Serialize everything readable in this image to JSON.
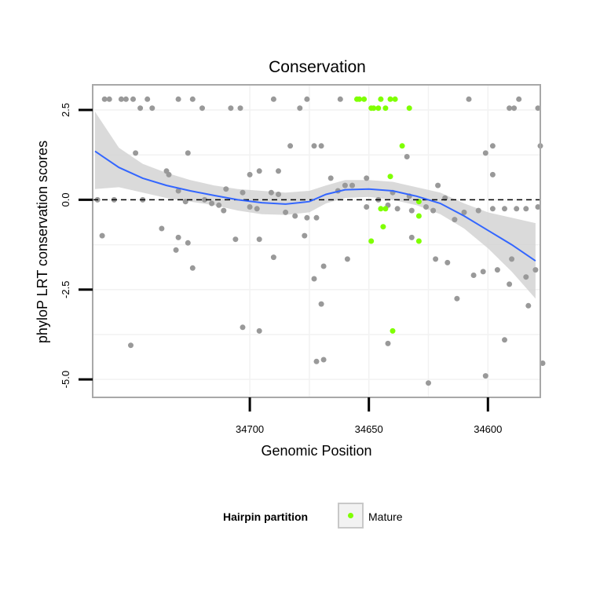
{
  "chart_data": {
    "type": "scatter",
    "title": "Conservation",
    "xlabel": "Genomic Position",
    "ylabel": "phyloP LRT conservation scores",
    "x_reversed": true,
    "xlim": [
      34766,
      34578
    ],
    "ylim": [
      -5.5,
      3.2
    ],
    "x_ticks": [
      34700,
      34650,
      34600
    ],
    "x_tick_labels": [
      "34700",
      "34650",
      "34600"
    ],
    "y_ticks": [
      2.5,
      0.0,
      -2.5,
      -5.0
    ],
    "y_tick_labels": [
      "2.5",
      "0.0",
      "-2.5",
      "-5.0"
    ],
    "reference_line_y": 0,
    "grid": true,
    "legend": {
      "title": "Hairpin partition",
      "entries": [
        "Mature"
      ],
      "position": "bottom"
    },
    "colors": {
      "default_points": "#999999",
      "mature_points": "#7fff00",
      "smooth_line": "#3366ff",
      "ribbon": "#d3d3d3",
      "panel_border": "#a8a8a8"
    },
    "series": [
      {
        "name": "Mature",
        "color": "#7fff00",
        "points": [
          [
            34655,
            2.8
          ],
          [
            34654,
            2.8
          ],
          [
            34652,
            2.8
          ],
          [
            34649,
            2.55
          ],
          [
            34648,
            2.55
          ],
          [
            34646,
            2.55
          ],
          [
            34645,
            2.8
          ],
          [
            34643,
            2.55
          ],
          [
            34641,
            2.8
          ],
          [
            34639,
            2.8
          ],
          [
            34636,
            1.5
          ],
          [
            34641,
            0.65
          ],
          [
            34629,
            -0.05
          ],
          [
            34645,
            -0.25
          ],
          [
            34643,
            -0.25
          ],
          [
            34629,
            -0.45
          ],
          [
            34644,
            -0.75
          ],
          [
            34649,
            -1.15
          ],
          [
            34629,
            -1.15
          ],
          [
            34640,
            -3.65
          ],
          [
            34633,
            2.55
          ]
        ]
      },
      {
        "name": "",
        "color": "#999999",
        "points": [
          [
            34761,
            2.8
          ],
          [
            34759,
            2.8
          ],
          [
            34754,
            2.8
          ],
          [
            34752,
            2.8
          ],
          [
            34749,
            2.8
          ],
          [
            34746,
            2.55
          ],
          [
            34743,
            2.8
          ],
          [
            34741,
            2.55
          ],
          [
            34730,
            2.8
          ],
          [
            34724,
            2.8
          ],
          [
            34720,
            2.55
          ],
          [
            34708,
            2.55
          ],
          [
            34704,
            2.55
          ],
          [
            34690,
            2.8
          ],
          [
            34679,
            2.55
          ],
          [
            34676,
            2.8
          ],
          [
            34662,
            2.8
          ],
          [
            34608,
            2.8
          ],
          [
            34591,
            2.55
          ],
          [
            34589,
            2.55
          ],
          [
            34587,
            2.8
          ],
          [
            34579,
            2.55
          ],
          [
            34748,
            1.3
          ],
          [
            34726,
            1.3
          ],
          [
            34683,
            1.5
          ],
          [
            34673,
            1.5
          ],
          [
            34670,
            1.5
          ],
          [
            34634,
            1.2
          ],
          [
            34598,
            1.5
          ],
          [
            34578,
            1.5
          ],
          [
            34601,
            1.3
          ],
          [
            34735,
            0.8
          ],
          [
            34734,
            0.7
          ],
          [
            34710,
            0.3
          ],
          [
            34700,
            0.7
          ],
          [
            34696,
            0.8
          ],
          [
            34688,
            0.8
          ],
          [
            34666,
            0.6
          ],
          [
            34651,
            0.6
          ],
          [
            34660,
            0.4
          ],
          [
            34657,
            0.4
          ],
          [
            34640,
            0.2
          ],
          [
            34633,
            0.1
          ],
          [
            34621,
            0.4
          ],
          [
            34598,
            0.7
          ],
          [
            34764,
            0.0
          ],
          [
            34757,
            0.0
          ],
          [
            34745,
            0.0
          ],
          [
            34730,
            0.25
          ],
          [
            34727,
            -0.05
          ],
          [
            34719,
            0.0
          ],
          [
            34716,
            -0.1
          ],
          [
            34713,
            -0.15
          ],
          [
            34711,
            -0.3
          ],
          [
            34703,
            0.2
          ],
          [
            34700,
            -0.2
          ],
          [
            34697,
            -0.25
          ],
          [
            34691,
            0.2
          ],
          [
            34688,
            0.15
          ],
          [
            34685,
            -0.35
          ],
          [
            34681,
            -0.45
          ],
          [
            34676,
            -0.5
          ],
          [
            34672,
            -0.5
          ],
          [
            34663,
            0.25
          ],
          [
            34651,
            -0.2
          ],
          [
            34646,
            0.0
          ],
          [
            34642,
            -0.15
          ],
          [
            34638,
            -0.25
          ],
          [
            34632,
            -0.3
          ],
          [
            34626,
            -0.2
          ],
          [
            34623,
            -0.3
          ],
          [
            34618,
            0.05
          ],
          [
            34614,
            -0.55
          ],
          [
            34610,
            -0.35
          ],
          [
            34604,
            -0.3
          ],
          [
            34598,
            -0.25
          ],
          [
            34593,
            -0.25
          ],
          [
            34588,
            -0.25
          ],
          [
            34584,
            -0.25
          ],
          [
            34579,
            -0.2
          ],
          [
            34762,
            -1.0
          ],
          [
            34737,
            -0.8
          ],
          [
            34730,
            -1.05
          ],
          [
            34726,
            -1.2
          ],
          [
            34724,
            -1.9
          ],
          [
            34706,
            -1.1
          ],
          [
            34696,
            -1.1
          ],
          [
            34690,
            -1.6
          ],
          [
            34677,
            -1.0
          ],
          [
            34669,
            -1.85
          ],
          [
            34659,
            -1.65
          ],
          [
            34632,
            -1.05
          ],
          [
            34622,
            -1.65
          ],
          [
            34617,
            -1.75
          ],
          [
            34606,
            -2.1
          ],
          [
            34602,
            -2.0
          ],
          [
            34596,
            -1.95
          ],
          [
            34590,
            -1.65
          ],
          [
            34584,
            -2.15
          ],
          [
            34580,
            -1.95
          ],
          [
            34731,
            -1.4
          ],
          [
            34673,
            -2.2
          ],
          [
            34670,
            -2.9
          ],
          [
            34613,
            -2.75
          ],
          [
            34591,
            -2.35
          ],
          [
            34583,
            -2.95
          ],
          [
            34750,
            -4.05
          ],
          [
            34703,
            -3.55
          ],
          [
            34696,
            -3.65
          ],
          [
            34672,
            -4.5
          ],
          [
            34669,
            -4.45
          ],
          [
            34642,
            -4.0
          ],
          [
            34625,
            -5.1
          ],
          [
            34601,
            -4.9
          ],
          [
            34593,
            -3.9
          ],
          [
            34577,
            -4.55
          ]
        ]
      }
    ],
    "smooth_fit": {
      "x": [
        34765,
        34755,
        34745,
        34735,
        34725,
        34715,
        34705,
        34695,
        34685,
        34675,
        34668,
        34660,
        34650,
        34640,
        34630,
        34620,
        34610,
        34600,
        34590,
        34580
      ],
      "y": [
        1.35,
        0.9,
        0.6,
        0.4,
        0.25,
        0.12,
        0.0,
        -0.08,
        -0.12,
        -0.05,
        0.15,
        0.28,
        0.3,
        0.25,
        0.1,
        -0.1,
        -0.45,
        -0.85,
        -1.25,
        -1.7
      ],
      "lower": [
        0.3,
        0.35,
        0.2,
        0.05,
        -0.05,
        -0.15,
        -0.3,
        -0.4,
        -0.42,
        -0.35,
        -0.1,
        0.05,
        0.08,
        0.0,
        -0.15,
        -0.4,
        -0.8,
        -1.35,
        -2.0,
        -2.75
      ],
      "upper": [
        2.45,
        1.45,
        1.0,
        0.75,
        0.55,
        0.4,
        0.3,
        0.25,
        0.2,
        0.25,
        0.4,
        0.55,
        0.55,
        0.5,
        0.35,
        0.2,
        -0.1,
        -0.35,
        -0.5,
        -0.65
      ]
    }
  }
}
